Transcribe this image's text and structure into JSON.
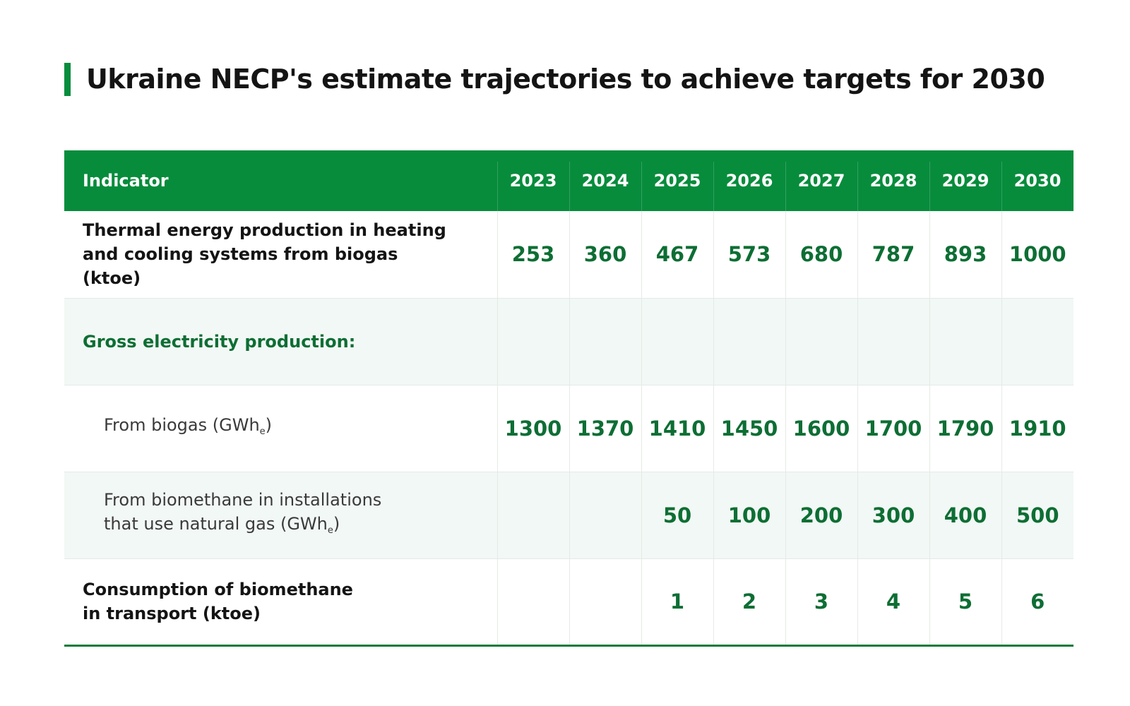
{
  "title": "Ukraine NECP's estimate trajectories to achieve targets for 2030",
  "colors": {
    "accent": "#078c3c",
    "value_text": "#0d6e34",
    "shaded_row": "#f2f8f5"
  },
  "chart_data": {
    "type": "table",
    "title": "Ukraine NECP's estimate trajectories to achieve targets for 2030",
    "columns": [
      "Indicator",
      "2023",
      "2024",
      "2025",
      "2026",
      "2027",
      "2028",
      "2029",
      "2030"
    ],
    "rows": [
      {
        "label": "Thermal energy production in heating\nand cooling systems from biogas (ktoe)",
        "values": [
          "253",
          "360",
          "467",
          "573",
          "680",
          "787",
          "893",
          "1000"
        ]
      },
      {
        "label": "Gross electricity production:",
        "values": [
          "",
          "",
          "",
          "",
          "",
          "",
          "",
          ""
        ]
      },
      {
        "label": "From biogas (GWh",
        "unit_sub": "e",
        "label_end": ")",
        "values": [
          "1300",
          "1370",
          "1410",
          "1450",
          "1600",
          "1700",
          "1790",
          "1910"
        ]
      },
      {
        "label": "From biomethane in installations\nthat use natural gas (GWh",
        "unit_sub": "e",
        "label_end": ")",
        "values": [
          "",
          "",
          "50",
          "100",
          "200",
          "300",
          "400",
          "500"
        ]
      },
      {
        "label": "Consumption of biomethane\nin transport (ktoe)",
        "values": [
          "",
          "",
          "1",
          "2",
          "3",
          "4",
          "5",
          "6"
        ]
      }
    ]
  }
}
